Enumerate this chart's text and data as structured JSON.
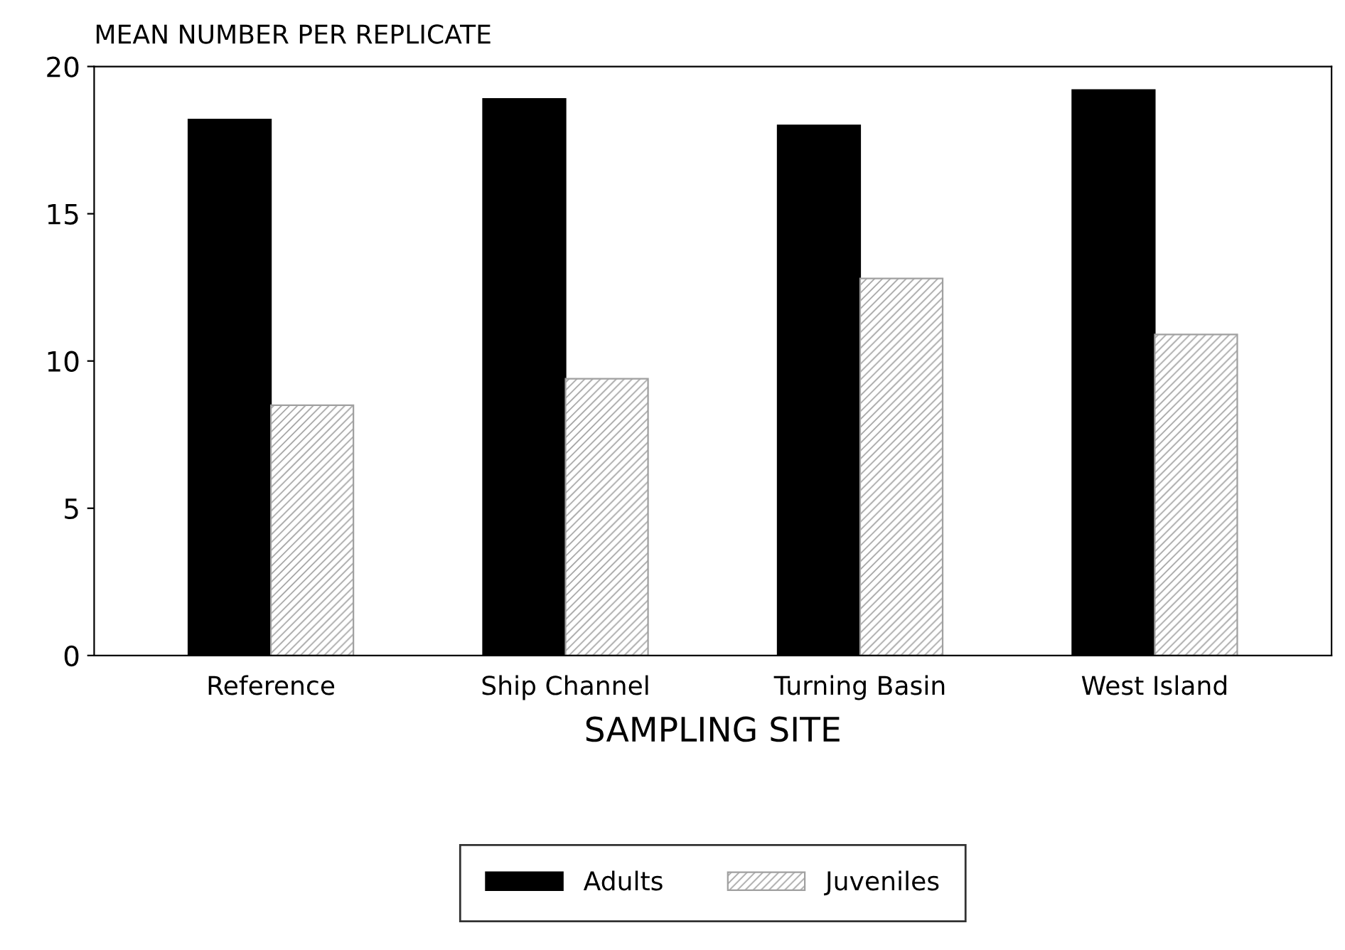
{
  "chart_data": {
    "type": "bar",
    "ylabel": "MEAN NUMBER PER REPLICATE",
    "xlabel": "SAMPLING SITE",
    "categories": [
      "Reference",
      "Ship Channel",
      "Turning Basin",
      "West Island"
    ],
    "series": [
      {
        "name": "Adults",
        "color": "#000000",
        "values": [
          18.2,
          18.9,
          18.0,
          19.2
        ]
      },
      {
        "name": "Juveniles",
        "color": "#a0a0a0",
        "values": [
          8.5,
          9.4,
          12.8,
          10.9
        ]
      }
    ],
    "ylim": [
      0,
      20
    ],
    "yticks": [
      0,
      5,
      10,
      15,
      20
    ],
    "grid": false,
    "legend": "bottom"
  }
}
